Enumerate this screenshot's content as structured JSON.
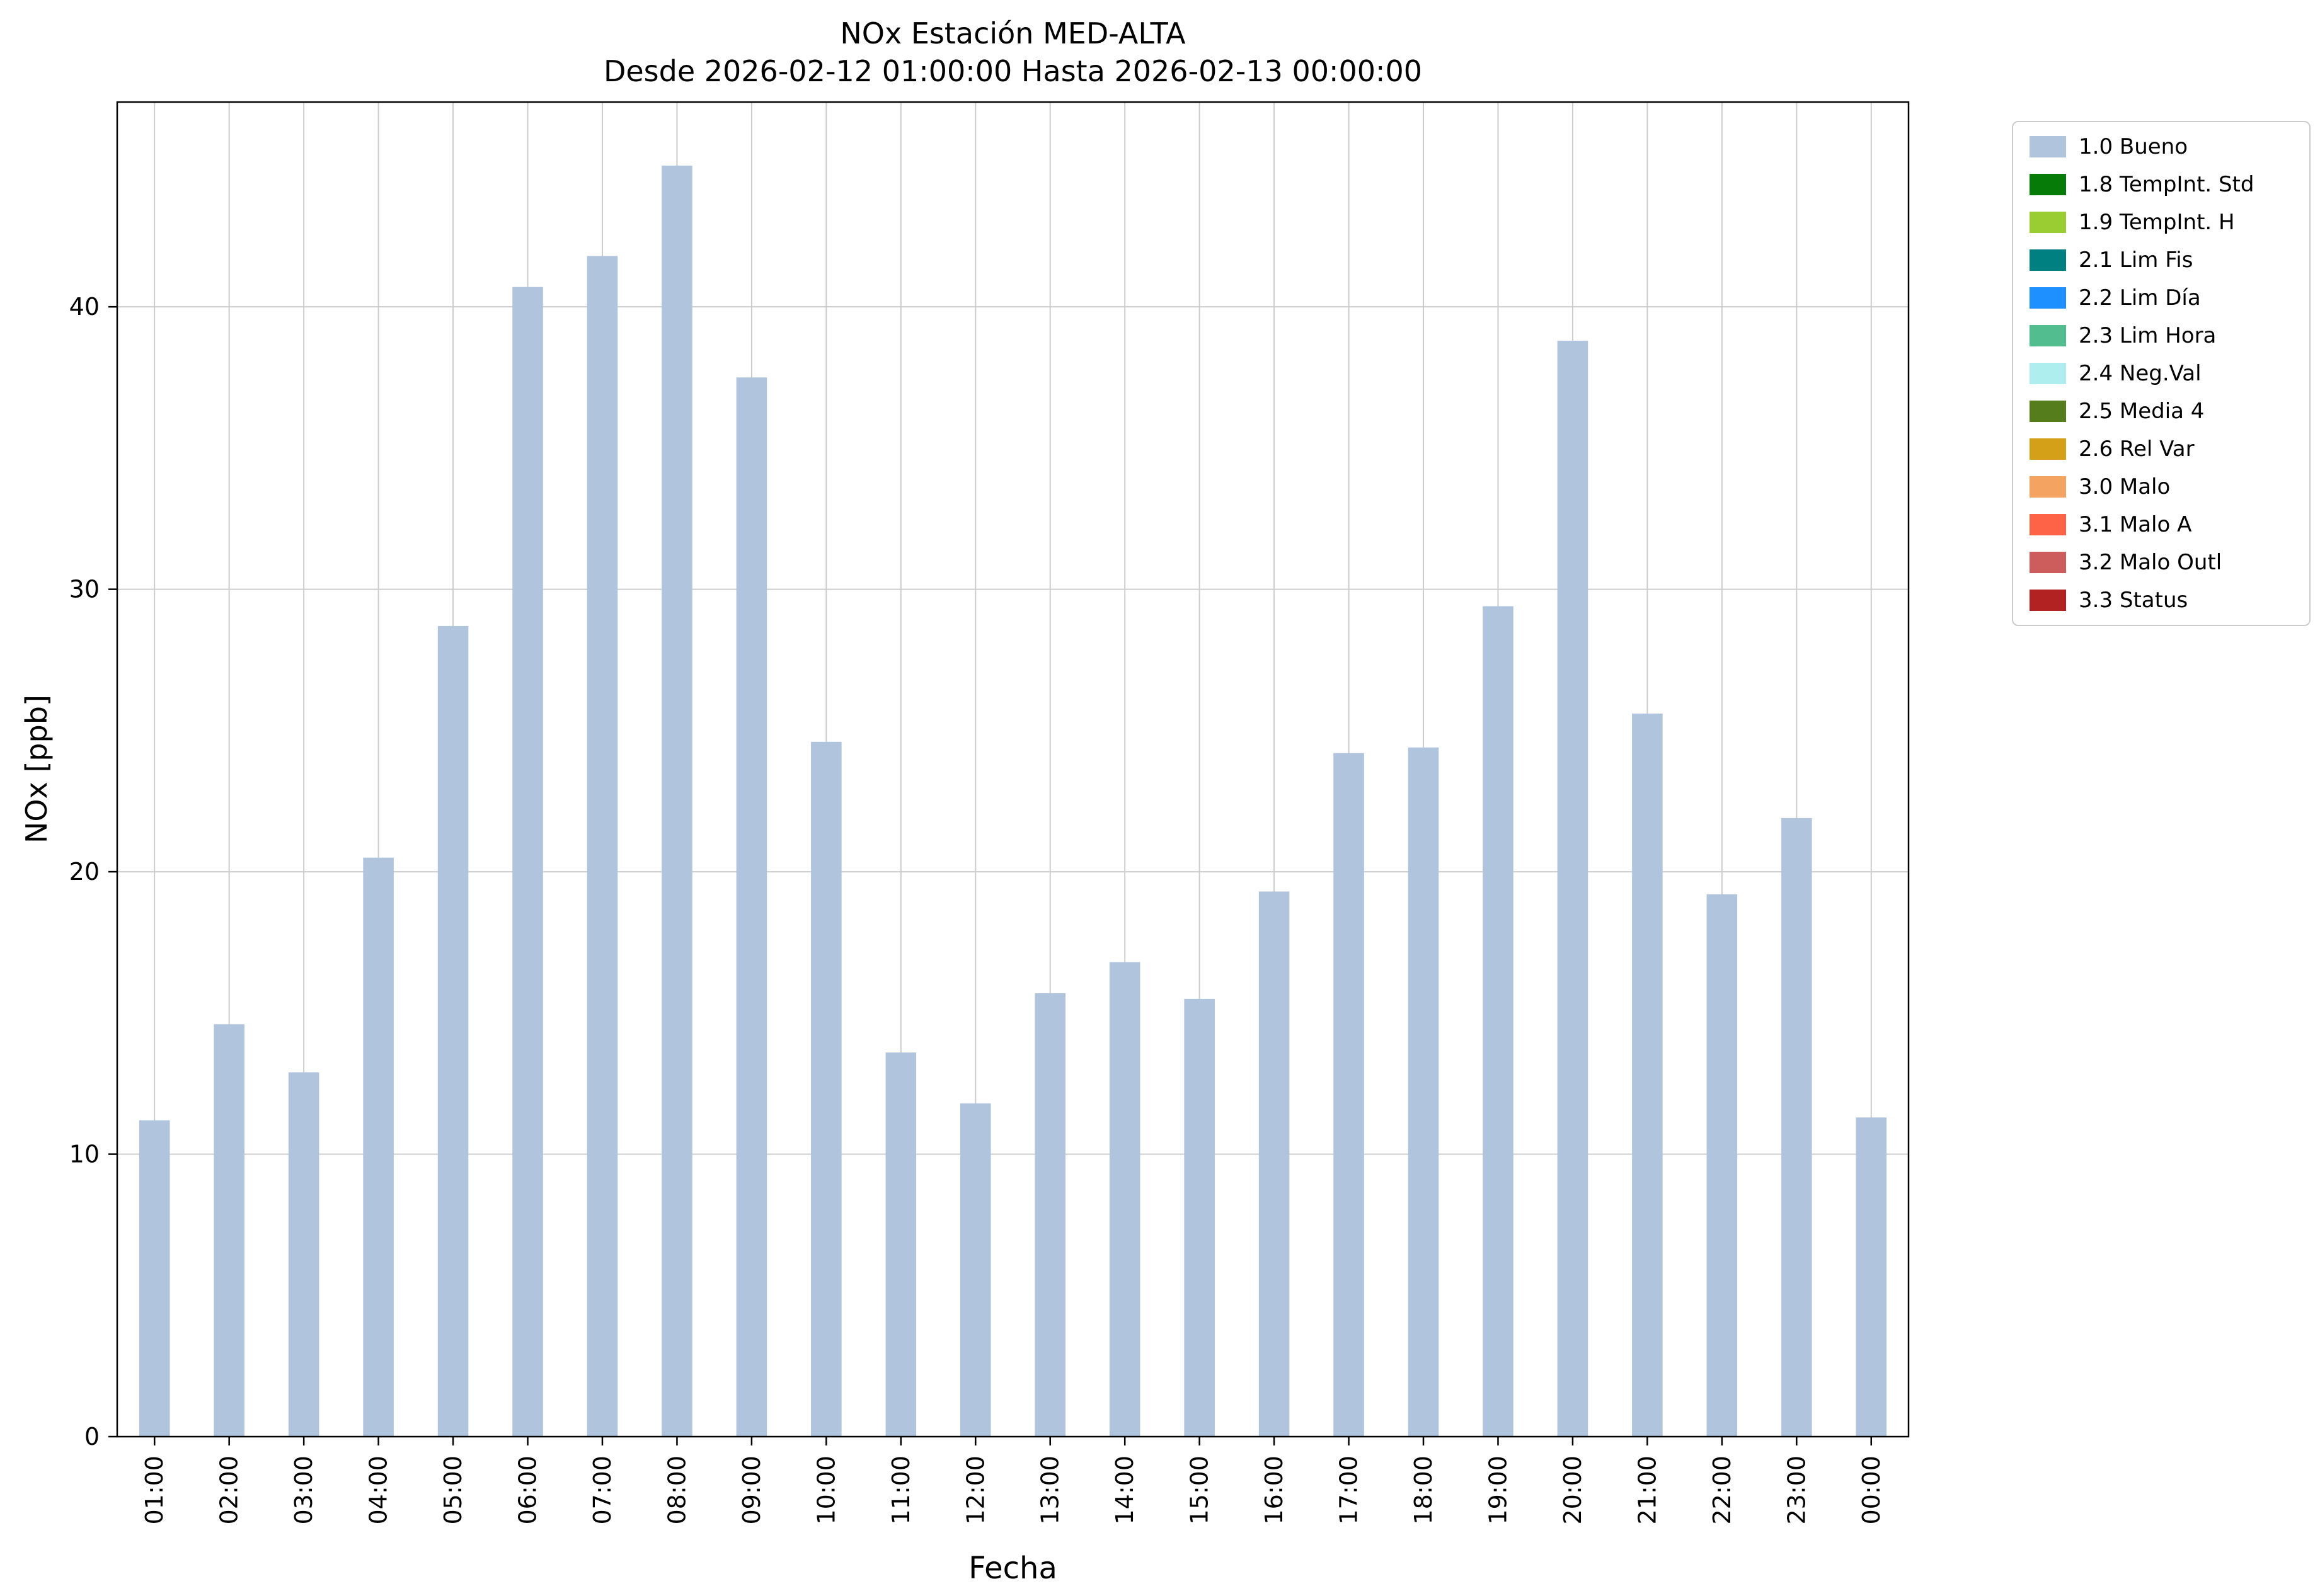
{
  "chart_data": {
    "type": "bar",
    "title": "NOx Estación MED-ALTA",
    "subtitle": "Desde 2026-02-12 01:00:00 Hasta 2026-02-13 00:00:00",
    "xlabel": "Fecha",
    "ylabel": "NOx [ppb]",
    "ylim": [
      0,
      47.25
    ],
    "yticks": [
      0,
      10,
      20,
      30,
      40
    ],
    "grid": true,
    "legend_position": "outside-upper-right",
    "categories": [
      "01:00",
      "02:00",
      "03:00",
      "04:00",
      "05:00",
      "06:00",
      "07:00",
      "08:00",
      "09:00",
      "10:00",
      "11:00",
      "12:00",
      "13:00",
      "14:00",
      "15:00",
      "16:00",
      "17:00",
      "18:00",
      "19:00",
      "20:00",
      "21:00",
      "22:00",
      "23:00",
      "00:00"
    ],
    "values": [
      11.2,
      14.6,
      12.9,
      20.5,
      28.7,
      40.7,
      41.8,
      45.0,
      37.5,
      24.6,
      13.6,
      11.8,
      15.7,
      16.8,
      15.5,
      19.3,
      24.2,
      24.4,
      29.4,
      38.8,
      25.6,
      19.2,
      21.9,
      11.3
    ],
    "colors": {
      "bar": "#b0c4de",
      "grid": "#cccccc",
      "axis": "#000000",
      "legend_border": "#cccccc"
    },
    "legend": [
      {
        "label": "1.0 Bueno",
        "color": "#b0c4de"
      },
      {
        "label": "1.8 TempInt. Std",
        "color": "#077b07"
      },
      {
        "label": "1.9 TempInt. H",
        "color": "#9acd32"
      },
      {
        "label": "2.1 Lim Fis",
        "color": "#008080"
      },
      {
        "label": "2.2 Lim Día",
        "color": "#1e90ff"
      },
      {
        "label": "2.3 Lim Hora",
        "color": "#52bd8f"
      },
      {
        "label": "2.4 Neg.Val",
        "color": "#aeeeee"
      },
      {
        "label": "2.5 Media 4",
        "color": "#567d1c"
      },
      {
        "label": "2.6 Rel Var",
        "color": "#d4a017"
      },
      {
        "label": "3.0 Malo",
        "color": "#f4a460"
      },
      {
        "label": "3.1 Malo A",
        "color": "#ff6347"
      },
      {
        "label": "3.2 Malo Outl",
        "color": "#cd5c5c"
      },
      {
        "label": "3.3 Status",
        "color": "#b22222"
      }
    ]
  }
}
